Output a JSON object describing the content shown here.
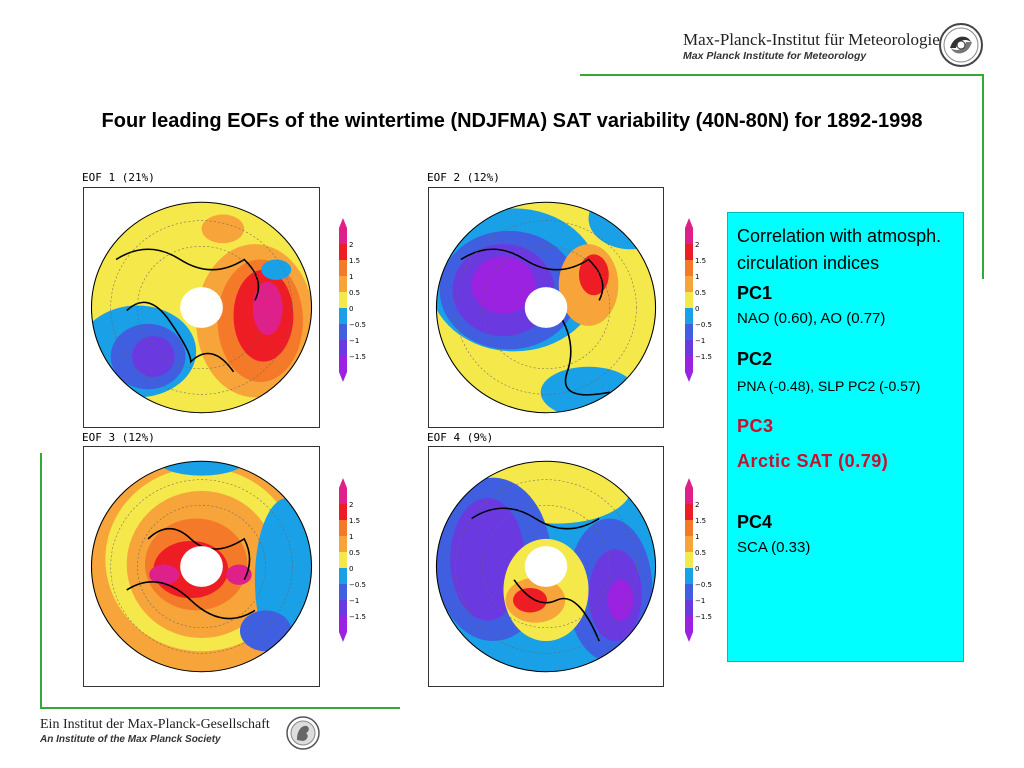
{
  "header": {
    "institute_de": "Max-Planck-Institut für Meteorologie",
    "institute_en": "Max Planck Institute for Meteorology"
  },
  "title": "Four leading EOFs of the wintertime (NDJFMA) SAT variability (40N-80N) for 1892-1998",
  "panels": [
    {
      "label": "EOF 1 (21%)"
    },
    {
      "label": "EOF 2 (12%)"
    },
    {
      "label": "EOF 3 (12%)"
    },
    {
      "label": "EOF 4 (9%)"
    }
  ],
  "colorbar": {
    "ticks": [
      "2",
      "1.5",
      "1",
      "0.5",
      "0",
      "−0.5",
      "−1",
      "−1.5"
    ],
    "colors": [
      "#e0208a",
      "#ee1c24",
      "#f47a2a",
      "#f7a43a",
      "#f4e84a",
      "#1aa0e6",
      "#3f5fe0",
      "#6a3ae0",
      "#9a22e0"
    ]
  },
  "info": {
    "intro": "Correlation with atmosph. circulation indices",
    "pc1_label": "PC1",
    "pc1_value": "NAO (0.60), AO (0.77)",
    "pc2_label": "PC2",
    "pc2_value": "PNA (-0.48), SLP PC2 (-0.57)",
    "pc3_label": "PC3",
    "pc3_value": "Arctic SAT (0.79)",
    "pc4_label": "PC4",
    "pc4_value": "SCA (0.33)"
  },
  "footer": {
    "society_de": "Ein Institut der Max-Planck-Gesellschaft",
    "society_en": "An Institute of the Max Planck Society"
  },
  "colors": {
    "accent_line": "#33aa33",
    "info_bg": "#00ffff",
    "pc3_red": "#c8102e"
  }
}
